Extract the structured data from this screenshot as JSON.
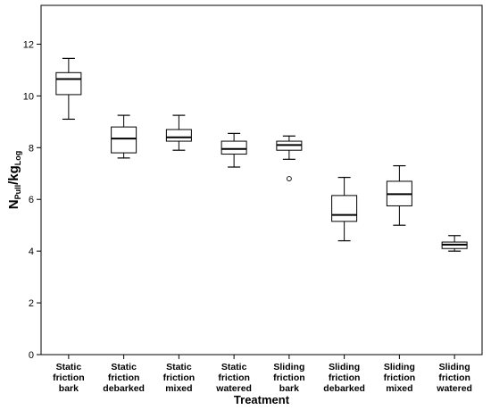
{
  "chart_data": {
    "type": "box",
    "xlabel": "Treatment",
    "ylabel": {
      "parts": [
        {
          "text": "N",
          "sub": false
        },
        {
          "text": "Pull",
          "sub": true
        },
        {
          "text": "/kg",
          "sub": false
        },
        {
          "text": "Log",
          "sub": true
        }
      ]
    },
    "ylim": [
      0,
      13.5
    ],
    "yticks": [
      0,
      2,
      4,
      6,
      8,
      10,
      12
    ],
    "ytick_labels": [
      "0",
      "2",
      "4",
      "6",
      "8",
      "10",
      "12"
    ],
    "categories": [
      [
        "Static",
        "friction",
        "bark"
      ],
      [
        "Static",
        "friction",
        "debarked"
      ],
      [
        "Static",
        "friction",
        "mixed"
      ],
      [
        "Static",
        "friction",
        "watered"
      ],
      [
        "Sliding",
        "friction",
        "bark"
      ],
      [
        "Sliding",
        "friction",
        "debarked"
      ],
      [
        "Sliding",
        "friction",
        "mixed"
      ],
      [
        "Sliding",
        "friction",
        "watered"
      ]
    ],
    "boxes": [
      {
        "min": 9.1,
        "q1": 10.05,
        "median": 10.65,
        "q3": 10.9,
        "max": 11.45,
        "outliers": []
      },
      {
        "min": 7.6,
        "q1": 7.8,
        "median": 8.35,
        "q3": 8.8,
        "max": 9.25,
        "outliers": []
      },
      {
        "min": 7.9,
        "q1": 8.25,
        "median": 8.4,
        "q3": 8.7,
        "max": 9.25,
        "outliers": []
      },
      {
        "min": 7.25,
        "q1": 7.75,
        "median": 7.95,
        "q3": 8.25,
        "max": 8.55,
        "outliers": []
      },
      {
        "min": 7.55,
        "q1": 7.9,
        "median": 8.1,
        "q3": 8.25,
        "max": 8.45,
        "outliers": [
          6.8
        ]
      },
      {
        "min": 4.4,
        "q1": 5.15,
        "median": 5.4,
        "q3": 6.15,
        "max": 6.85,
        "outliers": []
      },
      {
        "min": 5.0,
        "q1": 5.75,
        "median": 6.2,
        "q3": 6.7,
        "max": 7.3,
        "outliers": []
      },
      {
        "min": 4.0,
        "q1": 4.1,
        "median": 4.25,
        "q3": 4.35,
        "max": 4.6,
        "outliers": []
      }
    ],
    "grid": false,
    "legend": "none"
  }
}
